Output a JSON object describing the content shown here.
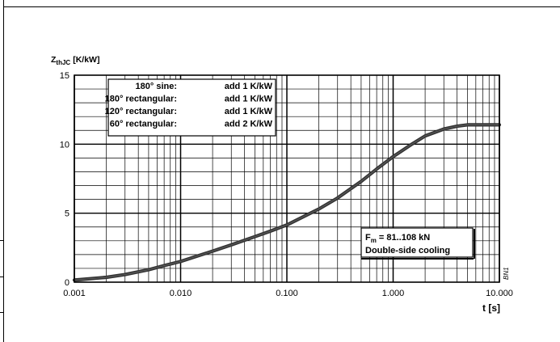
{
  "chart_data": {
    "type": "line",
    "title": "",
    "ylabel_main": "Z",
    "ylabel_sub": "thJC",
    "ylabel_unit": "[K/kW]",
    "xlabel": "t [s]",
    "x_scale": "log",
    "xlim": [
      0.001,
      10
    ],
    "ylim": [
      0,
      15
    ],
    "grid": true,
    "x_ticks": [
      {
        "value": 0.001,
        "label": "0.001"
      },
      {
        "value": 0.01,
        "label": "0.010"
      },
      {
        "value": 0.1,
        "label": "0.100"
      },
      {
        "value": 1,
        "label": "1.000"
      },
      {
        "value": 10,
        "label": "10.000"
      }
    ],
    "y_ticks": [
      {
        "value": 0,
        "label": "0"
      },
      {
        "value": 5,
        "label": "5"
      },
      {
        "value": 10,
        "label": "10"
      },
      {
        "value": 15,
        "label": "15"
      }
    ],
    "series": [
      {
        "color": "#333333",
        "x": [
          0.001,
          0.002,
          0.003,
          0.005,
          0.007,
          0.01,
          0.02,
          0.03,
          0.05,
          0.07,
          0.1,
          0.2,
          0.3,
          0.5,
          0.7,
          1,
          1.5,
          2,
          3,
          4,
          5,
          7,
          10
        ],
        "y": [
          0.15,
          0.35,
          0.55,
          0.9,
          1.2,
          1.5,
          2.25,
          2.7,
          3.3,
          3.7,
          4.15,
          5.3,
          6.1,
          7.3,
          8.2,
          9.1,
          10.0,
          10.6,
          11.1,
          11.3,
          11.4,
          11.4,
          11.4
        ]
      }
    ],
    "annotations": [
      {
        "name": "conduction-angle-note",
        "position": "top-left",
        "lines": [
          {
            "left": "180° sine:",
            "right": "add 1 K/kW"
          },
          {
            "left": "180° rectangular:",
            "right": "add 1 K/kW"
          },
          {
            "left": "120° rectangular:",
            "right": "add 1 K/kW"
          },
          {
            "left": "60° rectangular:",
            "right": "add 2 K/kW"
          }
        ]
      },
      {
        "name": "clamping-force-note",
        "position": "bottom-right",
        "force_main": "F",
        "force_sub": "m",
        "force_rest": " = 81..108 kN",
        "cooling": "Double-side cooling"
      }
    ],
    "side_code": "BN1"
  }
}
